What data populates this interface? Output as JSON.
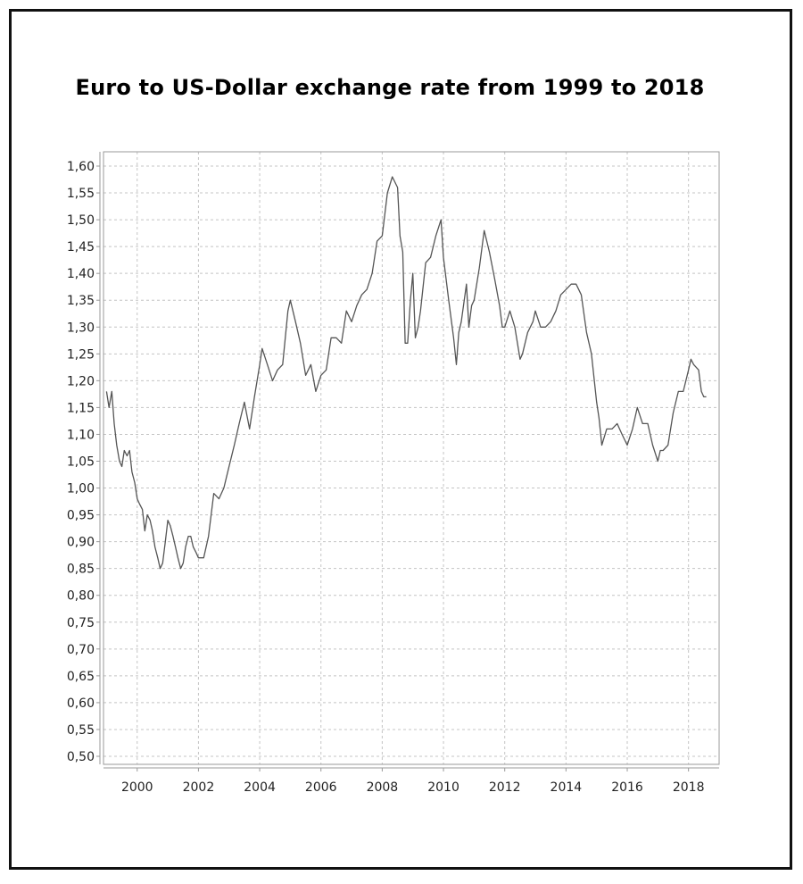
{
  "chart_data": {
    "type": "line",
    "title": "Euro to US-Dollar exchange rate from 1999 to 2018",
    "xlabel": "",
    "ylabel": "",
    "xlim": [
      1998.9,
      2019.0
    ],
    "ylim": [
      0.5,
      1.6
    ],
    "x_ticks": [
      2000,
      2002,
      2004,
      2006,
      2008,
      2010,
      2012,
      2014,
      2016,
      2018
    ],
    "y_ticks": [
      0.5,
      0.55,
      0.6,
      0.65,
      0.7,
      0.75,
      0.8,
      0.85,
      0.9,
      0.95,
      1.0,
      1.05,
      1.1,
      1.15,
      1.2,
      1.25,
      1.3,
      1.35,
      1.4,
      1.45,
      1.5,
      1.55,
      1.6
    ],
    "y_tick_labels": [
      "0,50",
      "0,55",
      "0,60",
      "0,65",
      "0,70",
      "0,75",
      "0,80",
      "0,85",
      "0,90",
      "0,95",
      "1,00",
      "1,05",
      "1,10",
      "1,15",
      "1,20",
      "1,25",
      "1,30",
      "1,35",
      "1,40",
      "1,45",
      "1,50",
      "1,55",
      "1,60"
    ],
    "grid": true,
    "colors": {
      "line": "#555555",
      "grid": "#c4c4c4",
      "axis": "#999999"
    },
    "series": [
      {
        "x": [
          1999.0,
          1999.08,
          1999.17,
          1999.25,
          1999.33,
          1999.42,
          1999.5,
          1999.58,
          1999.67,
          1999.75,
          1999.83,
          1999.92,
          2000.0,
          2000.08,
          2000.17,
          2000.25,
          2000.33,
          2000.42,
          2000.5,
          2000.58,
          2000.67,
          2000.75,
          2000.83,
          2000.92,
          2001.0,
          2001.08,
          2001.17,
          2001.25,
          2001.33,
          2001.42,
          2001.5,
          2001.58,
          2001.67,
          2001.75,
          2001.83,
          2001.92,
          2002.0,
          2002.17,
          2002.33,
          2002.5,
          2002.67,
          2002.83,
          2003.0,
          2003.17,
          2003.33,
          2003.5,
          2003.67,
          2003.83,
          2004.0,
          2004.08,
          2004.25,
          2004.42,
          2004.58,
          2004.75,
          2004.92,
          2005.0,
          2005.17,
          2005.33,
          2005.5,
          2005.67,
          2005.83,
          2006.0,
          2006.17,
          2006.33,
          2006.5,
          2006.67,
          2006.83,
          2007.0,
          2007.17,
          2007.33,
          2007.5,
          2007.67,
          2007.83,
          2008.0,
          2008.17,
          2008.33,
          2008.5,
          2008.58,
          2008.67,
          2008.75,
          2008.83,
          2008.92,
          2009.0,
          2009.08,
          2009.17,
          2009.25,
          2009.42,
          2009.58,
          2009.75,
          2009.92,
          2010.0,
          2010.17,
          2010.33,
          2010.42,
          2010.5,
          2010.58,
          2010.75,
          2010.83,
          2010.92,
          2011.0,
          2011.17,
          2011.33,
          2011.5,
          2011.67,
          2011.83,
          2011.92,
          2012.0,
          2012.17,
          2012.33,
          2012.5,
          2012.58,
          2012.75,
          2012.92,
          2013.0,
          2013.17,
          2013.33,
          2013.5,
          2013.67,
          2013.83,
          2014.0,
          2014.17,
          2014.33,
          2014.5,
          2014.67,
          2014.83,
          2015.0,
          2015.08,
          2015.17,
          2015.33,
          2015.5,
          2015.67,
          2015.83,
          2016.0,
          2016.17,
          2016.33,
          2016.5,
          2016.67,
          2016.83,
          2017.0,
          2017.08,
          2017.17,
          2017.33,
          2017.5,
          2017.67,
          2017.83,
          2018.0,
          2018.08,
          2018.17,
          2018.33,
          2018.42,
          2018.5,
          2018.58
        ],
        "values": [
          1.18,
          1.15,
          1.18,
          1.12,
          1.08,
          1.05,
          1.04,
          1.07,
          1.06,
          1.07,
          1.03,
          1.01,
          0.98,
          0.97,
          0.96,
          0.92,
          0.95,
          0.94,
          0.92,
          0.89,
          0.87,
          0.85,
          0.86,
          0.9,
          0.94,
          0.93,
          0.91,
          0.89,
          0.87,
          0.85,
          0.86,
          0.89,
          0.91,
          0.91,
          0.89,
          0.88,
          0.87,
          0.87,
          0.91,
          0.99,
          0.98,
          1.0,
          1.04,
          1.08,
          1.12,
          1.16,
          1.11,
          1.17,
          1.23,
          1.26,
          1.23,
          1.2,
          1.22,
          1.23,
          1.33,
          1.35,
          1.31,
          1.27,
          1.21,
          1.23,
          1.18,
          1.21,
          1.22,
          1.28,
          1.28,
          1.27,
          1.33,
          1.31,
          1.34,
          1.36,
          1.37,
          1.4,
          1.46,
          1.47,
          1.55,
          1.58,
          1.56,
          1.47,
          1.44,
          1.27,
          1.27,
          1.35,
          1.4,
          1.28,
          1.3,
          1.33,
          1.42,
          1.43,
          1.47,
          1.5,
          1.43,
          1.35,
          1.28,
          1.23,
          1.29,
          1.31,
          1.38,
          1.3,
          1.34,
          1.35,
          1.41,
          1.48,
          1.44,
          1.39,
          1.34,
          1.3,
          1.3,
          1.33,
          1.3,
          1.24,
          1.25,
          1.29,
          1.31,
          1.33,
          1.3,
          1.3,
          1.31,
          1.33,
          1.36,
          1.37,
          1.38,
          1.38,
          1.36,
          1.29,
          1.25,
          1.16,
          1.13,
          1.08,
          1.11,
          1.11,
          1.12,
          1.1,
          1.08,
          1.11,
          1.15,
          1.12,
          1.12,
          1.08,
          1.05,
          1.07,
          1.07,
          1.08,
          1.14,
          1.18,
          1.18,
          1.22,
          1.24,
          1.23,
          1.22,
          1.18,
          1.17,
          1.17
        ]
      }
    ]
  }
}
